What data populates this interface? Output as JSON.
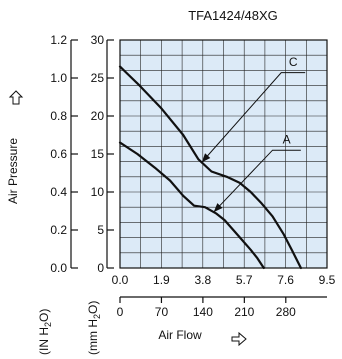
{
  "chart_data": {
    "type": "line",
    "title": "TFA1424/48XG",
    "ylabel": "Air Pressure",
    "xlabel": "Air Flow",
    "y_units": [
      "(IN H",
      "2",
      "O)",
      "(mm H",
      "2",
      "O)"
    ],
    "x_ticks_top": [
      "0.0",
      "1.9",
      "3.8",
      "5.7",
      "7.6",
      "9.5"
    ],
    "x_ticks_bottom": [
      "0",
      "70",
      "140",
      "210",
      "280"
    ],
    "y_ticks_inh2o": [
      "0.0",
      "0.2",
      "0.4",
      "0.6",
      "0.8",
      "1.0",
      "1.2"
    ],
    "y_ticks_mmh2o": [
      "0",
      "5",
      "10",
      "15",
      "20",
      "25",
      "30"
    ],
    "xlim": [
      0,
      9.5
    ],
    "ylim": [
      0,
      30
    ],
    "grid": true,
    "series": [
      {
        "name": "C",
        "x": [
          0.0,
          0.9,
          1.9,
          2.9,
          3.6,
          4.2,
          4.9,
          5.5,
          6.0,
          6.5,
          7.0,
          7.5,
          7.9,
          8.3
        ],
        "values": [
          26.5,
          24.0,
          21.0,
          17.5,
          14.3,
          12.7,
          12.0,
          11.2,
          10.0,
          8.5,
          6.8,
          4.5,
          2.3,
          0.0
        ]
      },
      {
        "name": "A",
        "x": [
          0.0,
          0.8,
          1.6,
          2.3,
          2.9,
          3.4,
          3.9,
          4.4,
          4.8,
          5.2,
          5.6,
          6.0,
          6.3,
          6.6
        ],
        "values": [
          16.5,
          15.0,
          13.2,
          11.5,
          9.5,
          8.2,
          8.0,
          7.2,
          6.3,
          5.0,
          3.7,
          2.4,
          1.3,
          0.0
        ]
      }
    ],
    "annotations": [
      {
        "label": "C",
        "series": "C"
      },
      {
        "label": "A",
        "series": "A"
      }
    ]
  }
}
